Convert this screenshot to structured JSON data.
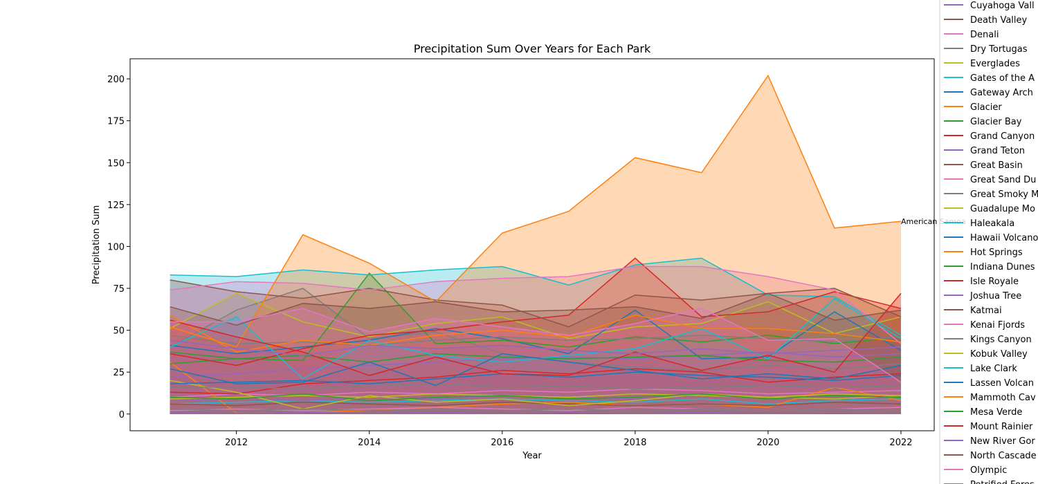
{
  "chart_data": {
    "type": "area",
    "title": "Precipitation Sum Over Years for Each Park",
    "xlabel": "Year",
    "ylabel": "Precipitation Sum",
    "xlim": [
      2010.4,
      2022.5
    ],
    "ylim": [
      -10,
      212
    ],
    "xticks": [
      2012,
      2014,
      2016,
      2018,
      2020,
      2022
    ],
    "yticks": [
      0,
      25,
      50,
      75,
      100,
      125,
      150,
      175,
      200
    ],
    "grid": false,
    "legend_placement": "right, outside plot",
    "annotation": {
      "text": "American Samoa",
      "x": 2022,
      "y": 115
    },
    "x": [
      2011,
      2012,
      2013,
      2014,
      2015,
      2016,
      2017,
      2018,
      2019,
      2020,
      2021,
      2022
    ],
    "series": [
      {
        "name": "Cuyahoga Vall",
        "color": "#9467bd",
        "values": [
          22,
          24,
          27,
          29,
          31,
          33,
          34,
          33,
          35,
          37,
          34,
          36
        ]
      },
      {
        "name": "Death Valley",
        "color": "#8c564b",
        "values": [
          1,
          0.5,
          0.8,
          0.5,
          1,
          0.6,
          0.4,
          0.5,
          1,
          0.5,
          0.4,
          0.6
        ]
      },
      {
        "name": "Denali",
        "color": "#e377c2",
        "values": [
          10,
          12,
          11,
          13,
          12,
          14,
          13,
          15,
          14,
          12,
          13,
          14
        ]
      },
      {
        "name": "Dry Tortugas",
        "color": "#7f7f7f",
        "values": [
          40,
          62,
          75,
          45,
          49,
          36,
          31,
          28,
          26,
          29,
          27,
          30
        ]
      },
      {
        "name": "Everglades",
        "color": "#bcbd22",
        "values": [
          51,
          72,
          55,
          46,
          54,
          58,
          45,
          52,
          54,
          67,
          48,
          58
        ]
      },
      {
        "name": "Gates of the A",
        "color": "#17becf",
        "values": [
          6,
          7,
          8,
          7,
          8,
          9,
          8,
          7,
          9,
          6,
          8,
          9
        ]
      },
      {
        "name": "Gateway Arch",
        "color": "#1f77b4",
        "values": [
          41,
          36,
          40,
          44,
          51,
          45,
          36,
          62,
          33,
          34,
          61,
          38
        ]
      },
      {
        "name": "Glacier",
        "color": "#ff7f0e",
        "values": [
          31,
          0.5,
          1,
          2,
          4,
          6,
          7,
          5,
          6,
          4,
          16,
          8
        ]
      },
      {
        "name": "Glacier Bay",
        "color": "#2ca02c",
        "values": [
          30,
          33,
          32,
          84,
          42,
          44,
          40,
          46,
          43,
          47,
          42,
          46
        ]
      },
      {
        "name": "Grand Canyon",
        "color": "#d62728",
        "values": [
          13,
          12,
          18,
          20,
          22,
          26,
          24,
          27,
          25,
          19,
          22,
          24
        ]
      },
      {
        "name": "Grand Teton",
        "color": "#9467bd",
        "values": [
          8,
          9,
          8,
          10,
          9,
          11,
          10,
          9,
          11,
          10,
          9,
          10
        ]
      },
      {
        "name": "Great Basin",
        "color": "#8c564b",
        "values": [
          6,
          5,
          7,
          6,
          5,
          7,
          6,
          5,
          6,
          5,
          7,
          6
        ]
      },
      {
        "name": "Great Sand Du",
        "color": "#e377c2",
        "values": [
          2,
          3,
          2,
          3,
          4,
          3,
          2,
          4,
          3,
          2,
          3,
          4
        ]
      },
      {
        "name": "Great Smoky M",
        "color": "#7f7f7f",
        "values": [
          47,
          42,
          43,
          41,
          44,
          46,
          44,
          45,
          47,
          45,
          43,
          46
        ]
      },
      {
        "name": "Guadalupe Mo",
        "color": "#bcbd22",
        "values": [
          20,
          13,
          3,
          11,
          7,
          9,
          5,
          8,
          12,
          10,
          9,
          11
        ]
      },
      {
        "name": "Haleakala",
        "color": "#17becf",
        "values": [
          83,
          82,
          86,
          83,
          86,
          88,
          77,
          89,
          93,
          71,
          70,
          47
        ]
      },
      {
        "name": "Hawaii Volcano",
        "color": "#1f77b4",
        "values": [
          18,
          19,
          20,
          18,
          21,
          24,
          22,
          25,
          23,
          22,
          20,
          23
        ]
      },
      {
        "name": "Hot Springs",
        "color": "#ff7f0e",
        "values": [
          59,
          37,
          44,
          41,
          47,
          50,
          46,
          59,
          51,
          51,
          48,
          43
        ]
      },
      {
        "name": "Indiana Dunes",
        "color": "#2ca02c",
        "values": [
          37,
          33,
          35,
          31,
          36,
          34,
          33,
          34,
          35,
          32,
          31,
          34
        ]
      },
      {
        "name": "Isle Royale",
        "color": "#d62728",
        "values": [
          36,
          29,
          39,
          47,
          50,
          55,
          59,
          93,
          58,
          61,
          73,
          63
        ]
      },
      {
        "name": "Joshua Tree",
        "color": "#9467bd",
        "values": [
          1,
          0.5,
          1,
          0.5,
          1,
          0.5,
          0.8,
          0.5,
          1,
          0.4,
          0.6,
          0.5
        ]
      },
      {
        "name": "Katmai",
        "color": "#8c564b",
        "values": [
          80,
          73,
          69,
          75,
          68,
          65,
          52,
          71,
          68,
          72,
          75,
          58
        ]
      },
      {
        "name": "Kenai Fjords",
        "color": "#e377c2",
        "values": [
          74,
          79,
          78,
          74,
          79,
          81,
          82,
          88,
          88,
          82,
          74,
          42
        ]
      },
      {
        "name": "Kings Canyon",
        "color": "#7f7f7f",
        "values": [
          16,
          16,
          15,
          17,
          18,
          16,
          17,
          15,
          16,
          17,
          16,
          17
        ]
      },
      {
        "name": "Kobuk Valley",
        "color": "#bcbd22",
        "values": [
          9,
          10,
          11,
          10,
          12,
          11,
          10,
          12,
          11,
          10,
          12,
          11
        ]
      },
      {
        "name": "Lake Clark",
        "color": "#17becf",
        "values": [
          40,
          58,
          21,
          44,
          35,
          31,
          35,
          39,
          51,
          33,
          69,
          45
        ]
      },
      {
        "name": "Lassen Volcan",
        "color": "#1f77b4",
        "values": [
          27,
          18,
          19,
          31,
          17,
          36,
          31,
          26,
          21,
          24,
          21,
          29
        ]
      },
      {
        "name": "Mammoth Cav",
        "color": "#ff7f0e",
        "values": [
          52,
          40,
          107,
          90,
          67,
          108,
          121,
          153,
          144,
          202,
          111,
          115
        ]
      },
      {
        "name": "Mesa Verde",
        "color": "#2ca02c",
        "values": [
          10,
          9,
          12,
          8,
          10,
          11,
          9,
          10,
          12,
          9,
          11,
          10
        ]
      },
      {
        "name": "Mount Rainier",
        "color": "#d62728",
        "values": [
          56,
          46,
          37,
          23,
          34,
          24,
          23,
          37,
          26,
          35,
          25,
          72
        ]
      },
      {
        "name": "New River Gor",
        "color": "#9467bd",
        "values": [
          44,
          39,
          35,
          41,
          39,
          41,
          38,
          36,
          39,
          36,
          38,
          40
        ]
      },
      {
        "name": "North Cascade",
        "color": "#8c564b",
        "values": [
          64,
          53,
          66,
          63,
          67,
          61,
          62,
          64,
          57,
          72,
          56,
          62
        ]
      },
      {
        "name": "Olympic",
        "color": "#e377c2",
        "values": [
          55,
          55,
          63,
          49,
          57,
          52,
          47,
          54,
          63,
          44,
          45,
          19
        ]
      },
      {
        "name": "Petrified Fores",
        "color": "#7f7f7f",
        "values": [
          3,
          2,
          3,
          2,
          3,
          2,
          3,
          2,
          3,
          2,
          3,
          2
        ]
      }
    ]
  }
}
